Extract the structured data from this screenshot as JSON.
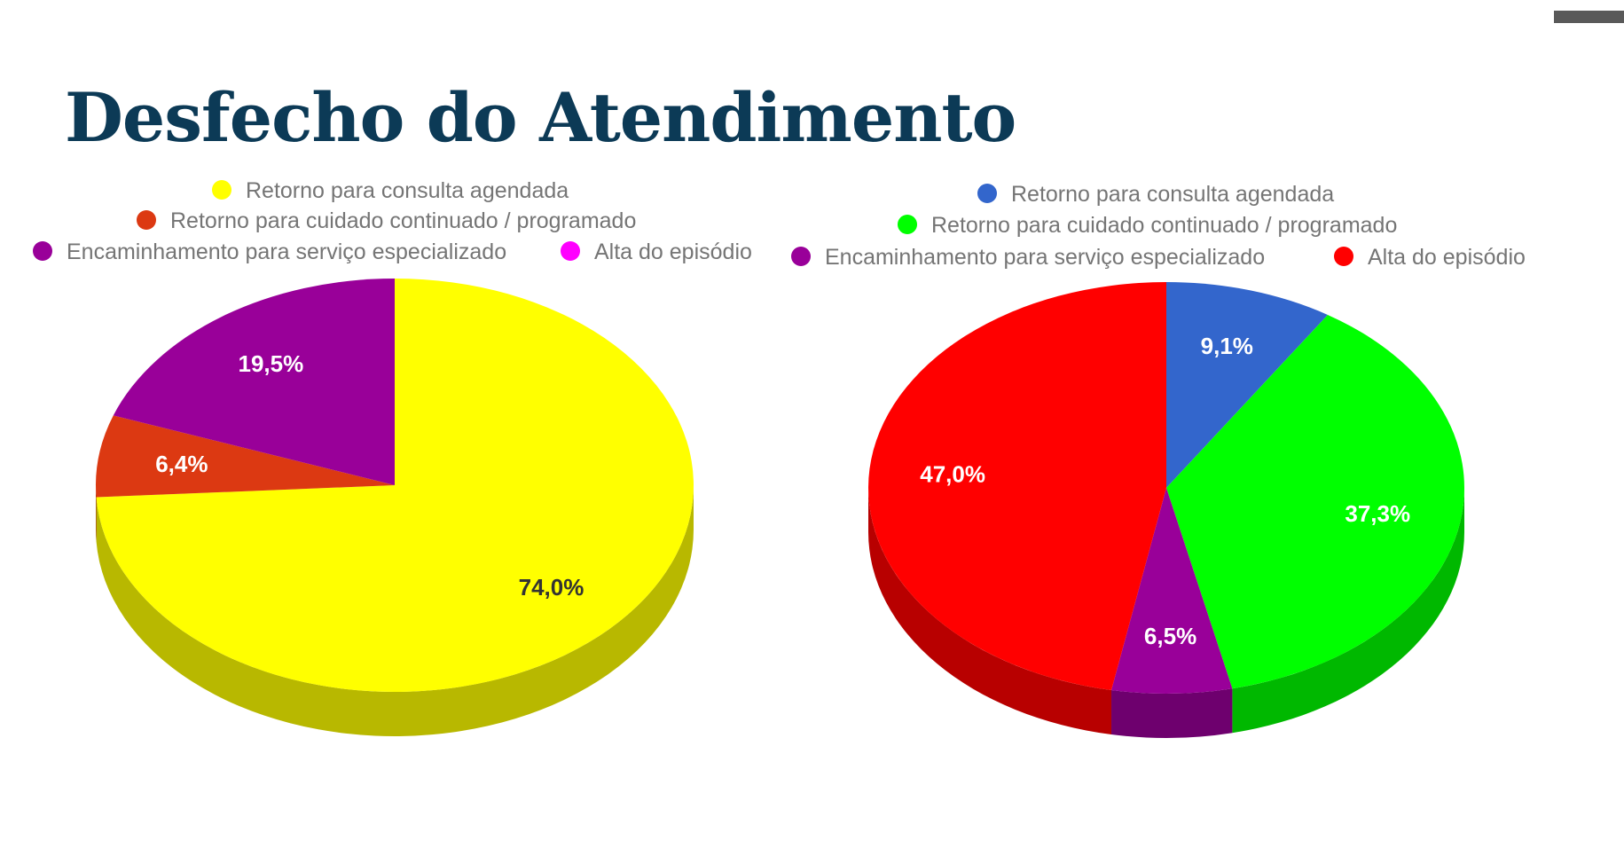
{
  "title": "Desfecho do Atendimento",
  "chart_data": [
    {
      "type": "pie",
      "style": "3d",
      "legend": "top",
      "categories": [
        "Retorno para consulta agendada",
        "Retorno para cuidado continuado / programado",
        "Encaminhamento para serviço especializado",
        "Alta do episódio"
      ],
      "colors": [
        "#ffff00",
        "#dc3912",
        "#990099",
        "#ff00ff"
      ],
      "values": [
        74.0,
        6.4,
        19.5,
        0.0
      ],
      "labels": [
        "74,0%",
        "6,4%",
        "19,5%",
        ""
      ]
    },
    {
      "type": "pie",
      "style": "3d",
      "legend": "top",
      "categories": [
        "Retorno para consulta agendada",
        "Retorno para cuidado continuado / programado",
        "Encaminhamento para serviço especializado",
        "Alta do episódio"
      ],
      "colors": [
        "#3366cc",
        "#00ff00",
        "#990099",
        "#ff0000"
      ],
      "values": [
        9.1,
        37.3,
        6.5,
        47.0
      ],
      "labels": [
        "9,1%",
        "37,3%",
        "6,5%",
        "47,0%"
      ]
    }
  ]
}
